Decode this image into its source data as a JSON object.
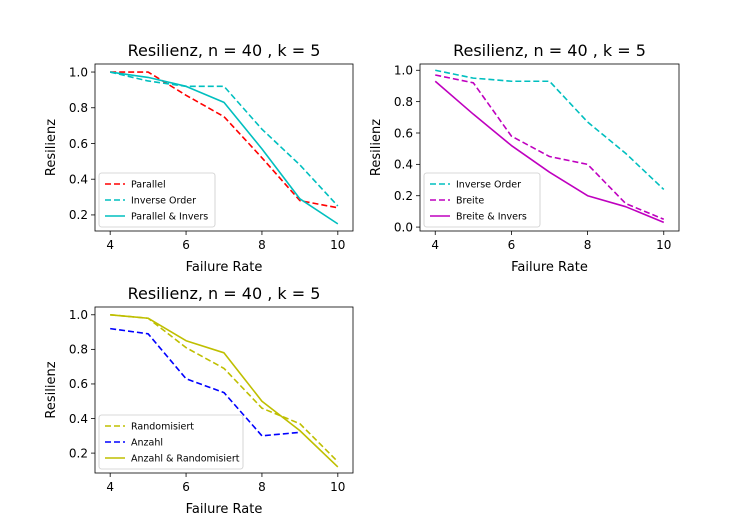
{
  "chart_data": [
    {
      "type": "line",
      "title": "Resilienz, n = 40 , k = 5",
      "xlabel": "Failure Rate",
      "ylabel": "Resilienz",
      "xlim": [
        3.6,
        10.4
      ],
      "ylim": [
        0.11,
        1.045
      ],
      "xticks": [
        4,
        6,
        8,
        10
      ],
      "yticks": [
        0.2,
        0.4,
        0.6,
        0.8,
        1.0
      ],
      "legend_position": "lower-left",
      "x": [
        4,
        5,
        6,
        7,
        8,
        9,
        10
      ],
      "series": [
        {
          "name": "Parallel",
          "color": "#ff0000",
          "dash": "dashed",
          "values": [
            1.0,
            1.0,
            0.87,
            0.75,
            0.52,
            0.28,
            0.24
          ]
        },
        {
          "name": "Inverse Order",
          "color": "#00bfbf",
          "dash": "dashed",
          "values": [
            1.0,
            0.95,
            0.92,
            0.92,
            0.68,
            0.48,
            0.25
          ]
        },
        {
          "name": "Parallel & Invers",
          "color": "#00bfbf",
          "dash": "solid",
          "values": [
            1.0,
            0.97,
            0.92,
            0.83,
            0.57,
            0.29,
            0.15
          ]
        }
      ]
    },
    {
      "type": "line",
      "title": "Resilienz, n = 40 , k = 5",
      "xlabel": "Failure Rate",
      "ylabel": "Resilienz",
      "xlim": [
        3.6,
        10.4
      ],
      "ylim": [
        -0.025,
        1.04
      ],
      "xticks": [
        4,
        6,
        8,
        10
      ],
      "yticks": [
        0.0,
        0.2,
        0.4,
        0.6,
        0.8,
        1.0
      ],
      "legend_position": "lower-left",
      "x": [
        4,
        5,
        6,
        7,
        8,
        9,
        10
      ],
      "series": [
        {
          "name": "Inverse Order",
          "color": "#00bfbf",
          "dash": "dashed",
          "values": [
            1.0,
            0.95,
            0.93,
            0.93,
            0.67,
            0.47,
            0.24
          ]
        },
        {
          "name": "Breite",
          "color": "#bf00bf",
          "dash": "dashed",
          "values": [
            0.97,
            0.92,
            0.58,
            0.45,
            0.4,
            0.15,
            0.05
          ]
        },
        {
          "name": "Breite & Invers",
          "color": "#bf00bf",
          "dash": "solid",
          "values": [
            0.93,
            0.72,
            0.52,
            0.35,
            0.2,
            0.13,
            0.03
          ]
        }
      ]
    },
    {
      "type": "line",
      "title": "Resilienz, n = 40 , k = 5",
      "xlabel": "Failure Rate",
      "ylabel": "Resilienz",
      "xlim": [
        3.6,
        10.4
      ],
      "ylim": [
        0.085,
        1.045
      ],
      "xticks": [
        4,
        6,
        8,
        10
      ],
      "yticks": [
        0.2,
        0.4,
        0.6,
        0.8,
        1.0
      ],
      "legend_position": "lower-left",
      "x": [
        4,
        5,
        6,
        7,
        8,
        9,
        10
      ],
      "series": [
        {
          "name": "Randomisiert",
          "color": "#bfbf00",
          "dash": "dashed",
          "values": [
            1.0,
            0.98,
            0.81,
            0.69,
            0.46,
            0.37,
            0.15
          ]
        },
        {
          "name": "Anzahl",
          "color": "#0000ff",
          "dash": "dashed",
          "values": [
            0.92,
            0.89,
            0.63,
            0.55,
            0.3,
            0.32,
            null
          ]
        },
        {
          "name": "Anzahl & Randomisiert",
          "color": "#bfbf00",
          "dash": "solid",
          "values": [
            1.0,
            0.98,
            0.85,
            0.78,
            0.5,
            0.33,
            0.12
          ]
        }
      ]
    }
  ]
}
